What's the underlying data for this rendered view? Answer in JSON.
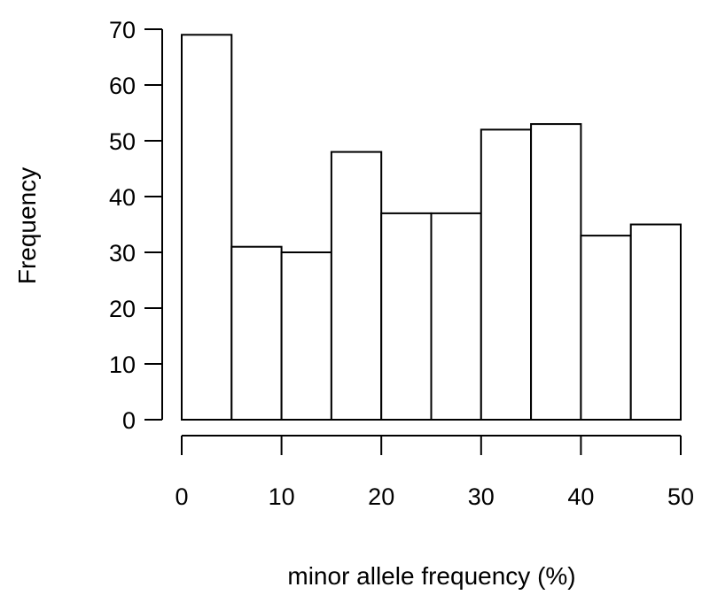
{
  "chart_data": {
    "type": "bar",
    "title": "",
    "xlabel": "minor allele frequency (%)",
    "ylabel": "Frequency",
    "bin_edges": [
      0,
      5,
      10,
      15,
      20,
      25,
      30,
      35,
      40,
      45,
      50
    ],
    "values": [
      69,
      31,
      30,
      48,
      37,
      37,
      52,
      53,
      33,
      35
    ],
    "xlim": [
      0,
      50
    ],
    "ylim": [
      0,
      70
    ],
    "xticks": [
      0,
      10,
      20,
      30,
      40,
      50
    ],
    "yticks": [
      0,
      10,
      20,
      30,
      40,
      50,
      60,
      70
    ],
    "xtick_labels": [
      "0",
      "10",
      "20",
      "30",
      "40",
      "50"
    ],
    "ytick_labels": [
      "0",
      "10",
      "20",
      "30",
      "40",
      "50",
      "60",
      "70"
    ],
    "grid": false,
    "legend": "none",
    "colors": {
      "bar_fill": "#ffffff",
      "bar_stroke": "#000000",
      "axis": "#000000",
      "background": "#ffffff"
    }
  }
}
